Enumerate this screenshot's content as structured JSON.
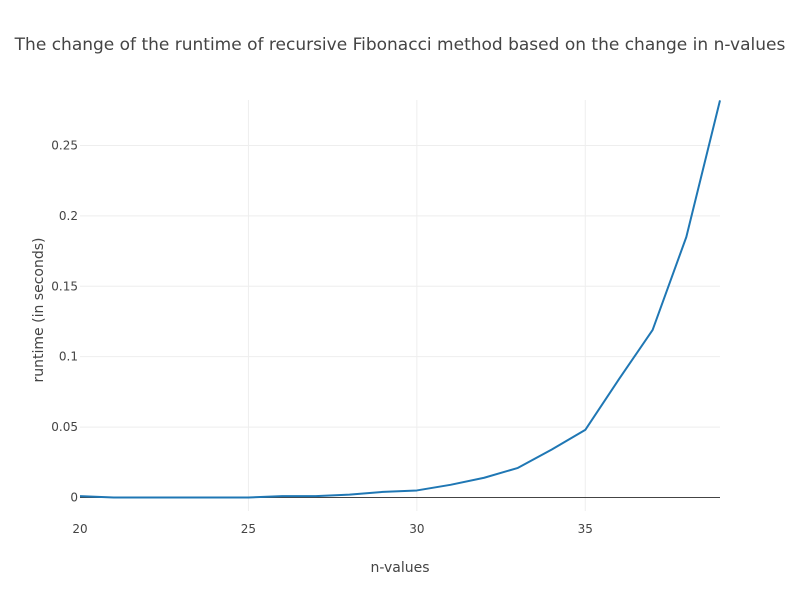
{
  "chart_data": {
    "type": "line",
    "title": "The change of the runtime of recursive Fibonacci method based on the change in n-values",
    "xlabel": "n-values",
    "ylabel": "runtime (in seconds)",
    "xlim": [
      20,
      39
    ],
    "ylim": [
      -0.0096,
      0.2823
    ],
    "x_ticks": [
      20,
      25,
      30,
      35
    ],
    "x_tick_labels": [
      "20",
      "25",
      "30",
      "35"
    ],
    "y_ticks": [
      0,
      0.05,
      0.1,
      0.15,
      0.2,
      0.25
    ],
    "y_tick_labels": [
      "0",
      "0.05",
      "0.1",
      "0.15",
      "0.2",
      "0.25"
    ],
    "grid": true,
    "series": [
      {
        "color": "#1f77b4",
        "x": [
          20,
          21,
          22,
          23,
          24,
          25,
          26,
          27,
          28,
          29,
          30,
          31,
          32,
          33,
          34,
          35,
          36,
          37,
          38,
          39
        ],
        "y": [
          0.001,
          0.0,
          0.0,
          0.0,
          0.0,
          0.0,
          0.001,
          0.001,
          0.002,
          0.004,
          0.005,
          0.009,
          0.014,
          0.021,
          0.034,
          0.048,
          0.084,
          0.119,
          0.185,
          0.282
        ]
      }
    ]
  }
}
